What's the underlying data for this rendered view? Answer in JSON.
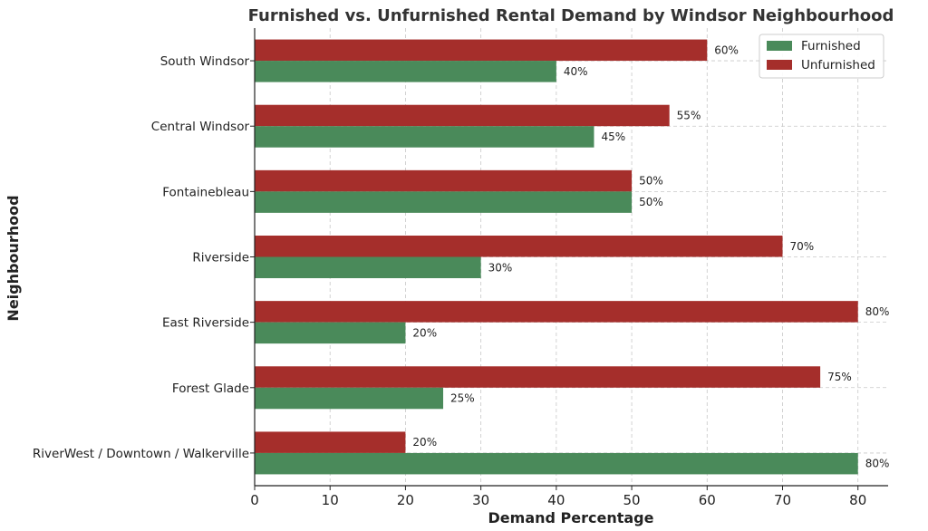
{
  "chart_data": {
    "type": "bar",
    "orientation": "horizontal",
    "title": "Furnished vs. Unfurnished Rental Demand by Windsor Neighbourhood",
    "xlabel": "Demand Percentage",
    "ylabel": "Neighbourhood",
    "xlim": [
      0,
      84
    ],
    "xticks": [
      0,
      10,
      20,
      30,
      40,
      50,
      60,
      70,
      80
    ],
    "grid": true,
    "legend_position": "top-right",
    "value_suffix": "%",
    "categories": [
      "South Windsor",
      "Central Windsor",
      "Fontainebleau",
      "Riverside",
      "East Riverside",
      "Forest Glade",
      "RiverWest / Downtown / Walkerville"
    ],
    "series": [
      {
        "name": "Furnished",
        "color": "#4a8a5a",
        "values": [
          40,
          45,
          50,
          30,
          20,
          25,
          80
        ]
      },
      {
        "name": "Unfurnished",
        "color": "#a52e2b",
        "values": [
          60,
          55,
          50,
          70,
          80,
          75,
          20
        ]
      }
    ]
  }
}
